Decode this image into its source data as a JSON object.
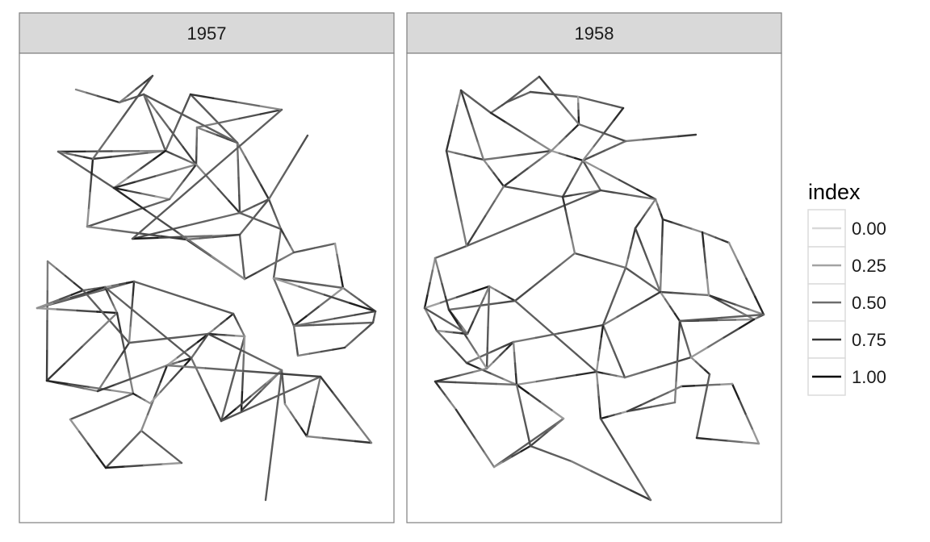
{
  "chart_data": {
    "type": "network",
    "facet_labels": [
      "1957",
      "1958"
    ],
    "legend": {
      "title": "index",
      "breaks": [
        0.0,
        0.25,
        0.5,
        0.75,
        1.0
      ],
      "labels": [
        "0.00",
        "0.25",
        "0.50",
        "0.75",
        "1.00"
      ]
    },
    "edge_color_low": "#d9d9d9",
    "edge_color_high": "#000000",
    "grid": false,
    "legend_position": "right"
  },
  "colors": {
    "strip_background": "#d9d9d9",
    "panel_border": "#7f7f7f",
    "panel_background": "#ffffff"
  }
}
